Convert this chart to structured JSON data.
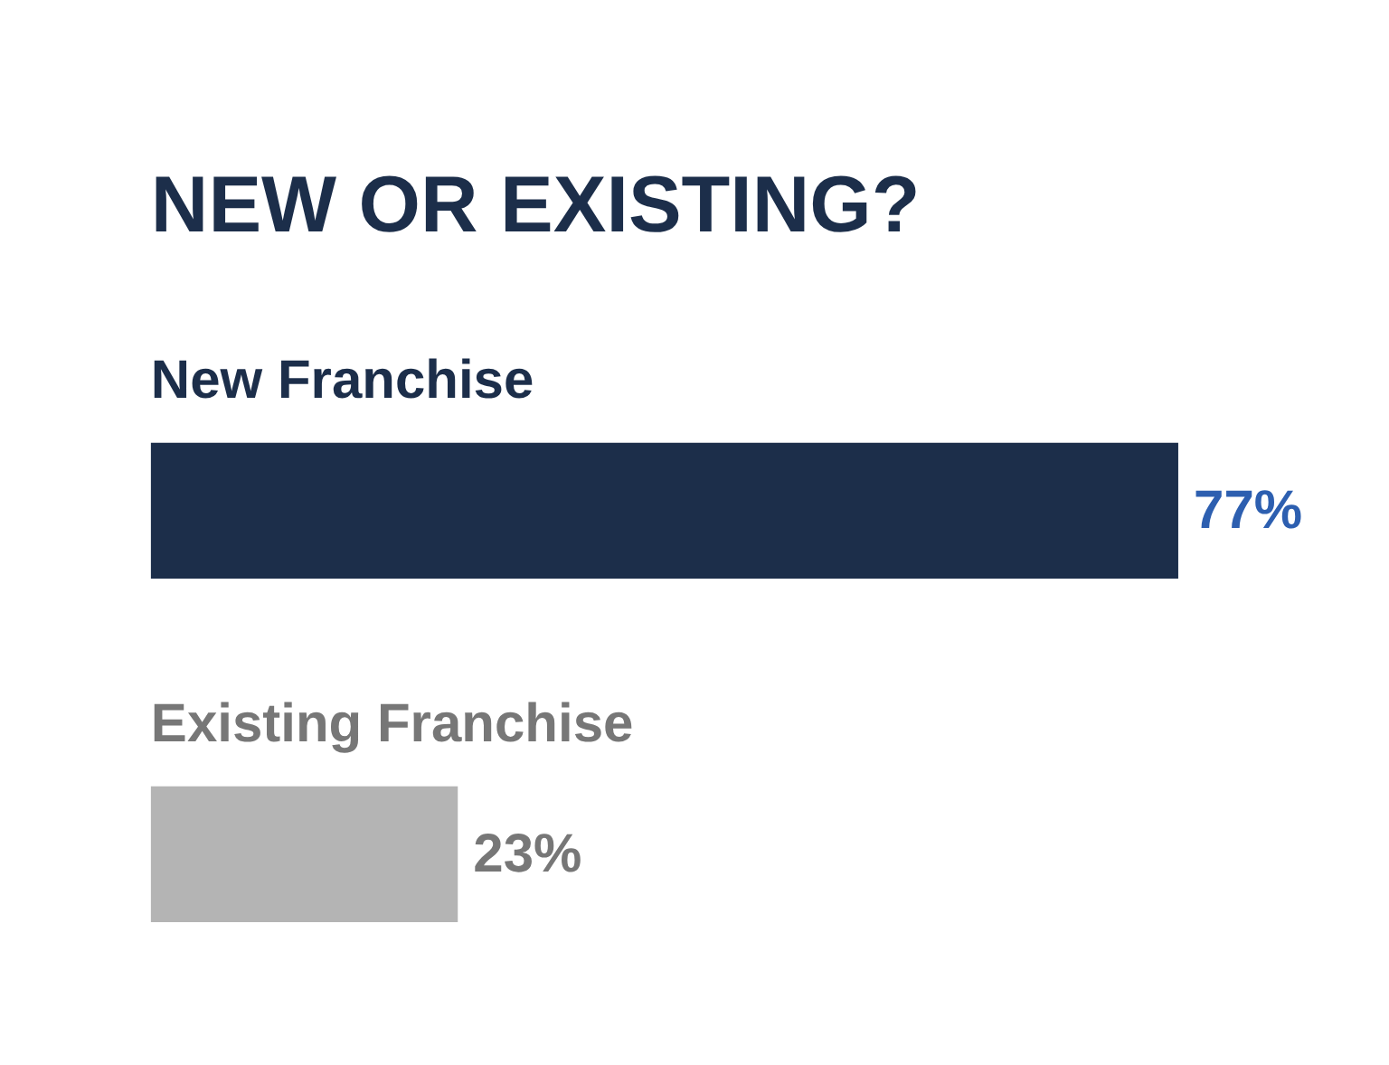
{
  "chart_data": {
    "type": "bar",
    "orientation": "horizontal",
    "title": "NEW OR EXISTING?",
    "categories": [
      "New Franchise",
      "Existing Franchise"
    ],
    "values": [
      77,
      23
    ],
    "colors": [
      "#1c2e4a",
      "#b4b4b4"
    ],
    "value_labels": [
      "77%",
      "23%"
    ]
  }
}
